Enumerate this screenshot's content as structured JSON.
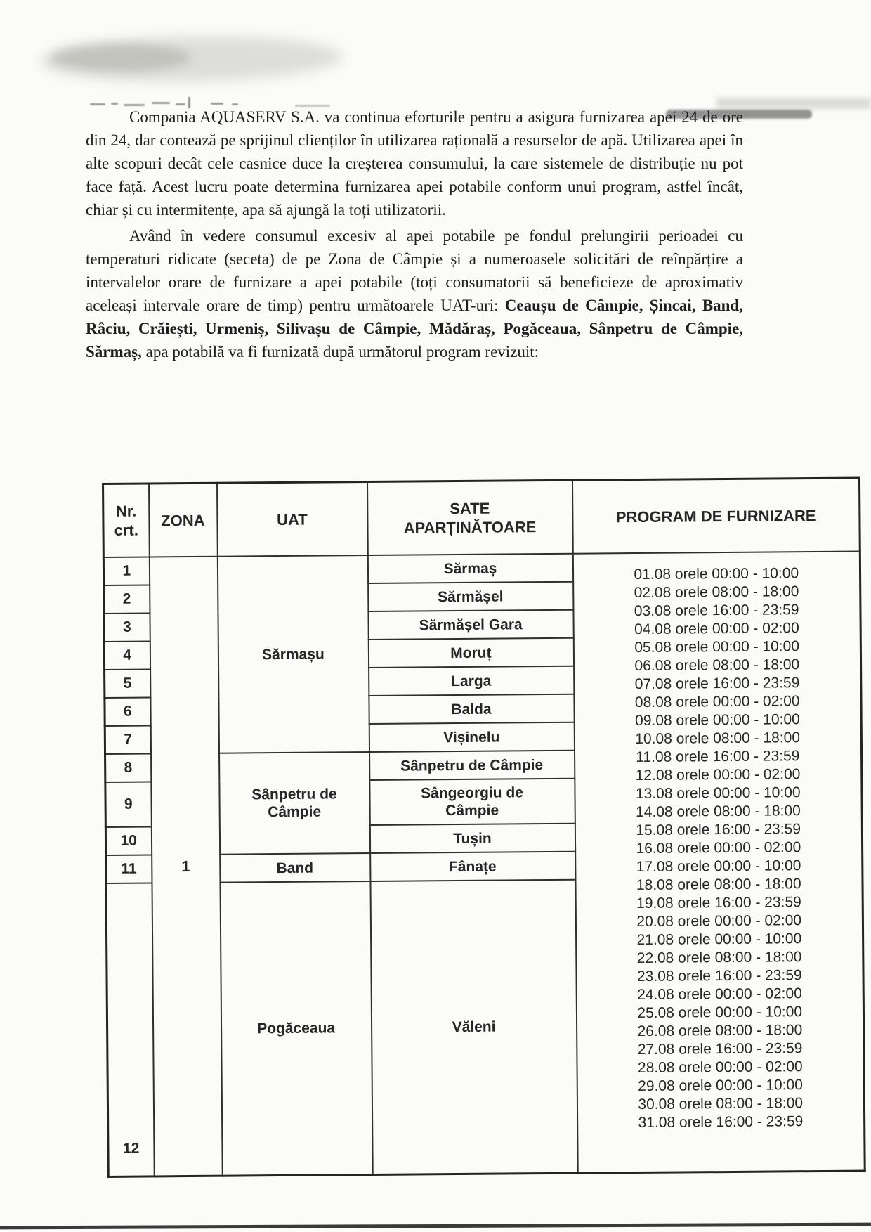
{
  "document": {
    "paragraphs": {
      "p1": "Compania AQUASERV S.A. va continua eforturile pentru a asigura furnizarea apei 24 de ore din 24, dar contează pe sprijinul clienților în utilizarea rațională a resurselor de apă. Utilizarea apei în alte scopuri decât cele casnice duce la creșterea consumului, la care sistemele de distribuție nu pot face față. Acest lucru poate determina furnizarea apei potabile conform unui program, astfel încât, chiar și cu intermitențe, apa să ajungă la toți utilizatorii.",
      "p2_intro": "Având în vedere consumul excesiv al apei potabile pe fondul prelungirii perioadei cu temperaturi ridicate (seceta) de pe Zona de Câmpie și a numeroasele solicitări de reînpărțire a intervalelor orare de furnizare a apei potabile (toți consumatorii să beneficieze de aproximativ aceleași intervale orare de timp) pentru următoarele UAT-uri: ",
      "p2_uat_list_bold": "Ceaușu de Câmpie, Șincai, Band, Râciu, Crăiești, Urmeniș, Silivașu de Câmpie, Mădăraș, Pogăceaua, Sânpetru de Câmpie, Sărmaș,",
      "p2_tail": " apa potabilă va fi furnizată după următorul program revizuit:"
    },
    "table": {
      "headers": {
        "nr": "Nr.\ncrt.",
        "zona": "ZONA",
        "uat": "UAT",
        "sate": "SATE\nAPARȚINĂTOARE",
        "program": "PROGRAM DE FURNIZARE"
      },
      "zona_value": "1",
      "uats": {
        "sarmasu": "Sărmașu",
        "sanpetru": "Sânpetru de\nCâmpie",
        "band": "Band",
        "pogaceaua": "Pogăceaua"
      },
      "rows": [
        {
          "nr": "1",
          "sat": "Sărmaș"
        },
        {
          "nr": "2",
          "sat": "Sărmășel"
        },
        {
          "nr": "3",
          "sat": "Sărmășel Gara"
        },
        {
          "nr": "4",
          "sat": "Moruț"
        },
        {
          "nr": "5",
          "sat": "Larga"
        },
        {
          "nr": "6",
          "sat": "Balda"
        },
        {
          "nr": "7",
          "sat": "Vișinelu"
        },
        {
          "nr": "8",
          "sat": "Sânpetru de Câmpie"
        },
        {
          "nr": "9",
          "sat": "Sângeorgiu de\nCâmpie"
        },
        {
          "nr": "10",
          "sat": "Tușin"
        },
        {
          "nr": "11",
          "sat": "Fânațe"
        },
        {
          "nr": "12",
          "sat": "Văleni"
        }
      ],
      "program_lines": [
        "01.08 orele 00:00 - 10:00",
        "02.08 orele 08:00 - 18:00",
        "03.08 orele 16:00 - 23:59",
        "04.08 orele 00:00 - 02:00",
        "05.08 orele 00:00 - 10:00",
        "06.08 orele 08:00 - 18:00",
        "07.08 orele 16:00 - 23:59",
        "08.08 orele 00:00 - 02:00",
        "09.08 orele 00:00 - 10:00",
        "10.08 orele 08:00 - 18:00",
        "11.08 orele 16:00 - 23:59",
        "12.08 orele 00:00 - 02:00",
        "13.08 orele 00:00 - 10:00",
        "14.08 orele 08:00 - 18:00",
        "15.08 orele 16:00 - 23:59",
        "16.08 orele 00:00 - 02:00",
        "17.08 orele 00:00 - 10:00",
        "18.08 orele 08:00 - 18:00",
        "19.08 orele 16:00 - 23:59",
        "20.08 orele 00:00 - 02:00",
        "21.08 orele 00:00 - 10:00",
        "22.08 orele 08:00 - 18:00",
        "23.08 orele 16:00 - 23:59",
        "24.08 orele 00:00 - 02:00",
        "25.08 orele 00:00 - 10:00",
        "26.08 orele 08:00 - 18:00",
        "27.08 orele 16:00 - 23:59",
        "28.08 orele 00:00 - 02:00",
        "29.08 orele 00:00 - 10:00",
        "30.08 orele 08:00 - 18:00",
        "31.08 orele 16:00 - 23:59"
      ]
    }
  }
}
